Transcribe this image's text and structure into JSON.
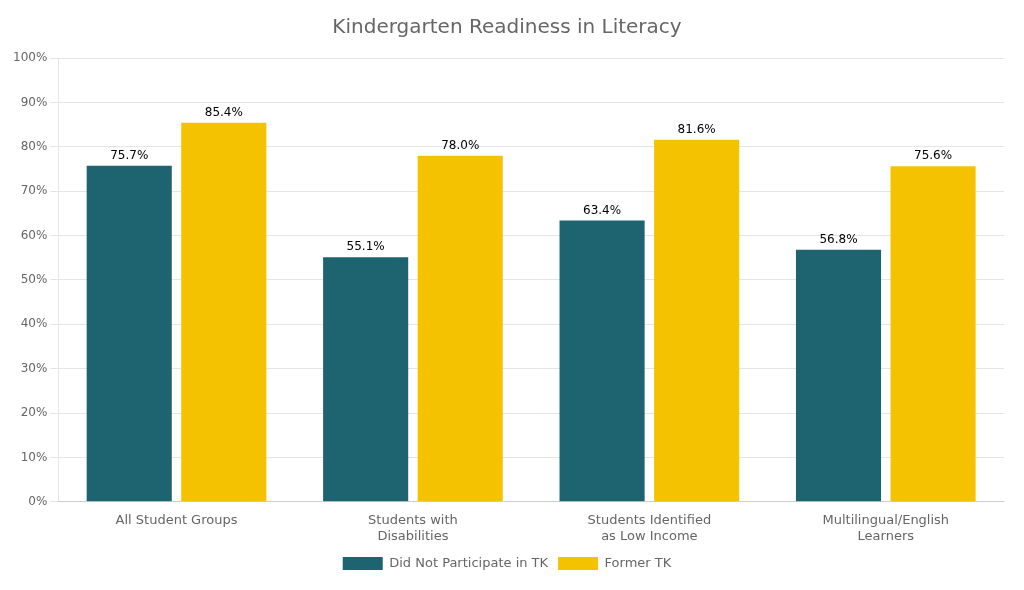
{
  "chart_data": {
    "type": "bar",
    "title": "Kindergarten Readiness in Literacy",
    "categories": [
      "All Student Groups",
      "Students with\nDisabilities",
      "Students Identified\nas Low Income",
      "Multilingual/English\nLearners"
    ],
    "series": [
      {
        "name": "Did Not Participate in TK",
        "color": "#1e6470",
        "values": [
          75.7,
          55.1,
          63.4,
          56.8
        ],
        "value_labels": [
          "75.7%",
          "55.1%",
          "63.4%",
          "56.8%"
        ]
      },
      {
        "name": "Former TK",
        "color": "#f5c200",
        "values": [
          85.4,
          78.0,
          81.6,
          75.6
        ],
        "value_labels": [
          "85.4%",
          "78.0%",
          "81.6%",
          "75.6%"
        ]
      }
    ],
    "ylim": [
      0,
      100
    ],
    "yticks": [
      {
        "value": 0,
        "label": "0%"
      },
      {
        "value": 10,
        "label": "10%"
      },
      {
        "value": 20,
        "label": "20%"
      },
      {
        "value": 30,
        "label": "30%"
      },
      {
        "value": 40,
        "label": "40%"
      },
      {
        "value": 50,
        "label": "50%"
      },
      {
        "value": 60,
        "label": "60%"
      },
      {
        "value": 70,
        "label": "70%"
      },
      {
        "value": 80,
        "label": "80%"
      },
      {
        "value": 90,
        "label": "90%"
      },
      {
        "value": 100,
        "label": "100%"
      }
    ],
    "grid": true,
    "legend": "bottom",
    "data_labels": true
  }
}
